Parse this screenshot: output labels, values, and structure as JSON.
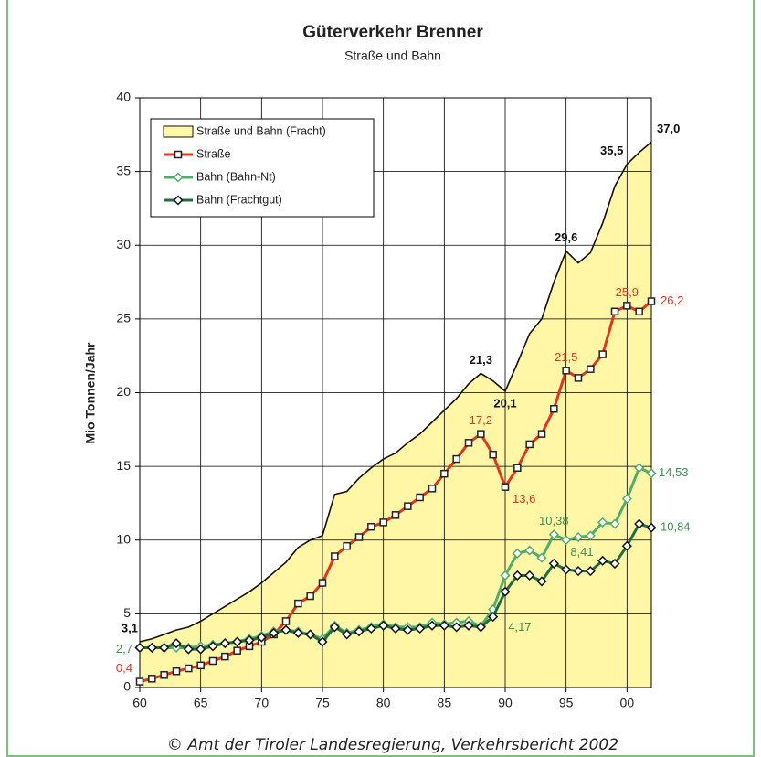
{
  "chart_data": {
    "type": "line",
    "title": "Güterverkehr Brenner",
    "subtitle": "Straße und Bahn",
    "y_label": "Mio Tonnen/Jahr",
    "source": "© Amt der Tiroler Landesregierung, Verkehrsbericht 2002",
    "x": [
      1960,
      1961,
      1962,
      1963,
      1964,
      1965,
      1966,
      1967,
      1968,
      1969,
      1970,
      1971,
      1972,
      1973,
      1974,
      1975,
      1976,
      1977,
      1978,
      1979,
      1980,
      1981,
      1982,
      1983,
      1984,
      1985,
      1986,
      1987,
      1988,
      1989,
      1990,
      1991,
      1992,
      1993,
      1994,
      1995,
      1996,
      1997,
      1998,
      1999,
      2000,
      2001,
      2002
    ],
    "xlim": [
      1960,
      2002
    ],
    "xticks": [
      {
        "value": 1960,
        "label": "60"
      },
      {
        "value": 1965,
        "label": "65"
      },
      {
        "value": 1970,
        "label": "70"
      },
      {
        "value": 1975,
        "label": "75"
      },
      {
        "value": 1980,
        "label": "80"
      },
      {
        "value": 1985,
        "label": "85"
      },
      {
        "value": 1990,
        "label": "90"
      },
      {
        "value": 1995,
        "label": "95"
      },
      {
        "value": 2000,
        "label": "00"
      }
    ],
    "ylim": [
      0,
      40
    ],
    "yticks": [
      0,
      5,
      10,
      15,
      20,
      25,
      30,
      35,
      40
    ],
    "grid": true,
    "legend": "upper left",
    "series": [
      {
        "name": "Straße und Bahn (Fracht)",
        "style": "area",
        "color": "#fff6a6",
        "values": [
          3.1,
          3.3,
          3.6,
          3.9,
          4.1,
          4.5,
          5.0,
          5.5,
          6.0,
          6.5,
          7.1,
          7.8,
          8.5,
          9.5,
          10.0,
          10.3,
          13.1,
          13.3,
          14.2,
          14.9,
          15.5,
          15.9,
          16.6,
          17.2,
          18.0,
          18.8,
          19.6,
          20.6,
          21.3,
          20.8,
          20.1,
          22.0,
          24.0,
          25.0,
          27.5,
          29.6,
          28.8,
          29.5,
          31.5,
          34.0,
          35.5,
          36.3,
          37.0
        ],
        "value_labels": [
          "3,1",
          null,
          null,
          null,
          null,
          null,
          null,
          null,
          null,
          null,
          null,
          null,
          null,
          null,
          null,
          null,
          null,
          null,
          null,
          null,
          null,
          null,
          null,
          null,
          null,
          null,
          null,
          null,
          "21,3",
          null,
          "20,1",
          null,
          null,
          null,
          null,
          "29,6",
          null,
          null,
          null,
          null,
          "35,5",
          null,
          "37,0"
        ]
      },
      {
        "name": "Straße",
        "style": "line",
        "marker": "square",
        "color": "#e8321e",
        "marker_color": "#222",
        "values": [
          0.4,
          0.6,
          0.85,
          1.1,
          1.3,
          1.5,
          1.8,
          2.1,
          2.5,
          2.8,
          3.1,
          3.6,
          4.5,
          5.7,
          6.2,
          7.1,
          8.9,
          9.6,
          10.2,
          10.9,
          11.2,
          11.7,
          12.3,
          12.9,
          13.5,
          14.5,
          15.5,
          16.6,
          17.2,
          15.8,
          13.6,
          14.9,
          16.5,
          17.2,
          18.9,
          21.5,
          21.0,
          21.6,
          22.6,
          25.5,
          25.9,
          25.5,
          26.2
        ],
        "value_labels": [
          "0,4",
          null,
          null,
          null,
          null,
          null,
          null,
          null,
          null,
          null,
          null,
          null,
          null,
          null,
          null,
          null,
          null,
          null,
          null,
          null,
          null,
          null,
          null,
          null,
          null,
          null,
          null,
          null,
          "17,2",
          null,
          "13,6",
          null,
          null,
          null,
          null,
          "21,5",
          null,
          null,
          null,
          null,
          "25,9",
          null,
          "26,2"
        ]
      },
      {
        "name": "Bahn (Bahn-Nt)",
        "style": "line",
        "marker": "diamond",
        "color": "#4fae6a",
        "marker_color": "#4fae6a",
        "values": [
          2.7,
          2.7,
          2.7,
          2.7,
          2.7,
          2.8,
          2.9,
          3.0,
          3.1,
          3.3,
          3.5,
          3.8,
          3.9,
          3.8,
          3.6,
          3.3,
          4.2,
          3.7,
          3.9,
          4.1,
          4.3,
          4.1,
          4.1,
          4.1,
          4.4,
          4.3,
          4.4,
          4.5,
          4.17,
          5.3,
          7.6,
          9.1,
          9.3,
          8.8,
          10.38,
          10.0,
          10.2,
          10.3,
          11.2,
          11.1,
          12.8,
          14.9,
          14.53
        ],
        "value_labels": [
          "2,7",
          null,
          null,
          null,
          null,
          null,
          null,
          null,
          null,
          null,
          null,
          null,
          null,
          null,
          null,
          null,
          null,
          null,
          null,
          null,
          null,
          null,
          null,
          null,
          null,
          null,
          null,
          null,
          "4,17",
          null,
          null,
          null,
          null,
          null,
          "10,38",
          null,
          null,
          null,
          null,
          null,
          null,
          null,
          "14,53"
        ]
      },
      {
        "name": "Bahn (Frachtgut)",
        "style": "line",
        "marker": "diamond",
        "color": "#1f6e43",
        "marker_color": "#111",
        "values": [
          2.7,
          2.7,
          2.7,
          3.0,
          2.6,
          2.6,
          2.8,
          3.0,
          3.1,
          3.2,
          3.4,
          3.7,
          3.9,
          3.7,
          3.6,
          3.1,
          4.1,
          3.6,
          3.8,
          4.0,
          4.2,
          4.0,
          3.9,
          4.0,
          4.2,
          4.2,
          4.1,
          4.2,
          4.1,
          4.8,
          6.5,
          7.6,
          7.6,
          7.2,
          8.41,
          8.0,
          7.9,
          7.9,
          8.6,
          8.4,
          9.6,
          11.1,
          10.84
        ],
        "value_labels": [
          null,
          null,
          null,
          null,
          null,
          null,
          null,
          null,
          null,
          null,
          null,
          null,
          null,
          null,
          null,
          null,
          null,
          null,
          null,
          null,
          null,
          null,
          null,
          null,
          null,
          null,
          null,
          null,
          null,
          null,
          null,
          null,
          null,
          null,
          "8,41",
          null,
          null,
          null,
          null,
          null,
          null,
          null,
          "10,84"
        ]
      }
    ]
  }
}
